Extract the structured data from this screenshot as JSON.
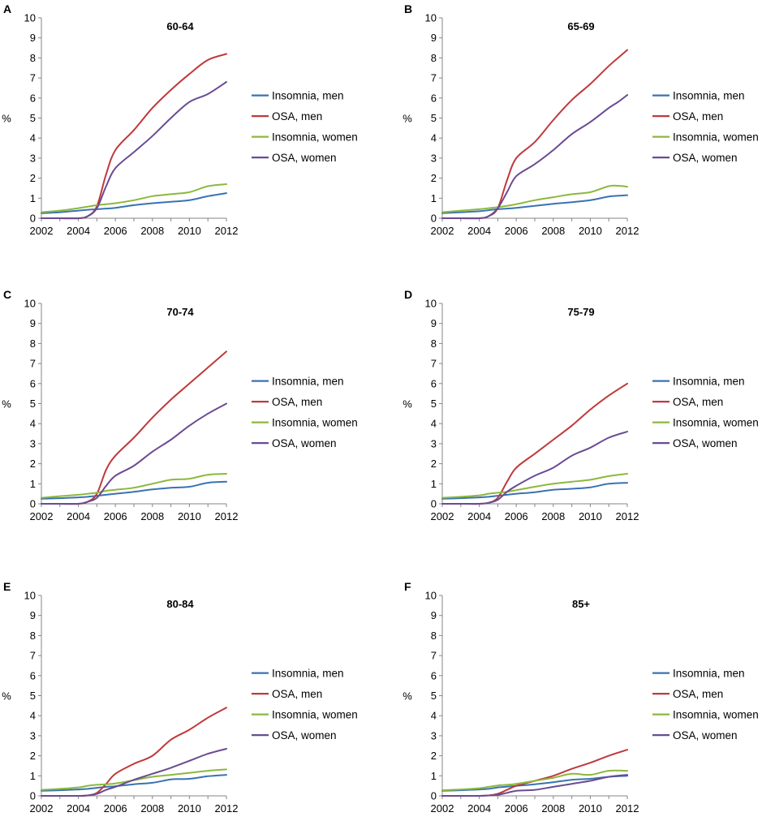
{
  "figure": {
    "series_colors": [
      "#3a72b2",
      "#c0393b",
      "#8cb83c",
      "#6a4b92"
    ]
  },
  "chart_data": [
    {
      "panel_letter": "A",
      "type": "line",
      "title": "60-64",
      "xlabel": "",
      "ylabel": "%",
      "xlim": [
        2002,
        2012
      ],
      "ylim": [
        0,
        10
      ],
      "x_ticks": [
        "2002",
        "2004",
        "2006",
        "2008",
        "2010",
        "2012"
      ],
      "y_ticks": [
        "0",
        "1",
        "2",
        "3",
        "4",
        "5",
        "6",
        "7",
        "8",
        "9",
        "10"
      ],
      "grid": false,
      "legend": "right",
      "x": [
        2002,
        2003,
        2004,
        2004.5,
        2005,
        2005.5,
        2006,
        2007,
        2008,
        2009,
        2010,
        2011,
        2012
      ],
      "series": [
        {
          "name": "Insomnia, men",
          "values": [
            0.25,
            0.3,
            0.38,
            0.42,
            0.45,
            0.48,
            0.52,
            0.65,
            0.75,
            0.82,
            0.9,
            1.1,
            1.25
          ]
        },
        {
          "name": "OSA, men",
          "values": [
            0,
            0,
            0,
            0.1,
            0.6,
            2.2,
            3.4,
            4.4,
            5.5,
            6.4,
            7.2,
            7.9,
            8.2
          ]
        },
        {
          "name": "Insomnia, women",
          "values": [
            0.3,
            0.38,
            0.5,
            0.58,
            0.65,
            0.7,
            0.75,
            0.9,
            1.1,
            1.2,
            1.3,
            1.6,
            1.7
          ]
        },
        {
          "name": "OSA, women",
          "values": [
            0,
            0,
            0,
            0.1,
            0.5,
            1.6,
            2.5,
            3.3,
            4.1,
            5,
            5.8,
            6.2,
            6.8
          ]
        }
      ]
    },
    {
      "panel_letter": "B",
      "type": "line",
      "title": "65-69",
      "xlabel": "",
      "ylabel": "%",
      "xlim": [
        2002,
        2012
      ],
      "ylim": [
        0,
        10
      ],
      "x_ticks": [
        "2002",
        "2004",
        "2006",
        "2008",
        "2010",
        "2012"
      ],
      "y_ticks": [
        "0",
        "1",
        "2",
        "3",
        "4",
        "5",
        "6",
        "7",
        "8",
        "9",
        "10"
      ],
      "grid": false,
      "legend": "right",
      "x": [
        2002,
        2003,
        2004,
        2004.5,
        2005,
        2005.5,
        2006,
        2007,
        2008,
        2009,
        2010,
        2011,
        2011.5,
        2012
      ],
      "series": [
        {
          "name": "Insomnia, men",
          "values": [
            0.25,
            0.3,
            0.35,
            0.4,
            0.45,
            0.48,
            0.52,
            0.62,
            0.72,
            0.8,
            0.9,
            1.08,
            1.12,
            1.15
          ]
        },
        {
          "name": "OSA, men",
          "values": [
            0,
            0,
            0,
            0.1,
            0.5,
            1.9,
            3.0,
            3.8,
            4.9,
            5.9,
            6.7,
            7.6,
            8.0,
            8.4
          ]
        },
        {
          "name": "Insomnia, women",
          "values": [
            0.3,
            0.38,
            0.45,
            0.5,
            0.55,
            0.62,
            0.7,
            0.9,
            1.05,
            1.2,
            1.3,
            1.6,
            1.62,
            1.57
          ]
        },
        {
          "name": "OSA, women",
          "values": [
            0,
            0,
            0,
            0.1,
            0.5,
            1.3,
            2.1,
            2.7,
            3.4,
            4.2,
            4.8,
            5.5,
            5.8,
            6.15
          ]
        }
      ]
    },
    {
      "panel_letter": "C",
      "type": "line",
      "title": "70-74",
      "xlabel": "",
      "ylabel": "%",
      "xlim": [
        2002,
        2012
      ],
      "ylim": [
        0,
        10
      ],
      "x_ticks": [
        "2002",
        "2004",
        "2006",
        "2008",
        "2010",
        "2012"
      ],
      "y_ticks": [
        "0",
        "1",
        "2",
        "3",
        "4",
        "5",
        "6",
        "7",
        "8",
        "9",
        "10"
      ],
      "grid": false,
      "legend": "right",
      "x": [
        2002,
        2003,
        2004,
        2004.5,
        2005,
        2005.5,
        2006,
        2007,
        2008,
        2009,
        2010,
        2011,
        2012
      ],
      "series": [
        {
          "name": "Insomnia, men",
          "values": [
            0.25,
            0.28,
            0.32,
            0.35,
            0.4,
            0.45,
            0.5,
            0.6,
            0.72,
            0.8,
            0.85,
            1.05,
            1.1
          ]
        },
        {
          "name": "OSA, men",
          "values": [
            0,
            0,
            0,
            0.1,
            0.5,
            1.7,
            2.4,
            3.3,
            4.3,
            5.2,
            6,
            6.8,
            7.6
          ]
        },
        {
          "name": "Insomnia, women",
          "values": [
            0.3,
            0.38,
            0.45,
            0.5,
            0.55,
            0.65,
            0.7,
            0.8,
            1.0,
            1.2,
            1.25,
            1.45,
            1.5
          ]
        },
        {
          "name": "OSA, women",
          "values": [
            0,
            0,
            0,
            0.1,
            0.3,
            0.9,
            1.4,
            1.9,
            2.6,
            3.2,
            3.9,
            4.5,
            5.0
          ]
        }
      ]
    },
    {
      "panel_letter": "D",
      "type": "line",
      "title": "75-79",
      "xlabel": "",
      "ylabel": "%",
      "xlim": [
        2002,
        2012
      ],
      "ylim": [
        0,
        10
      ],
      "x_ticks": [
        "2002",
        "2004",
        "2006",
        "2008",
        "2010",
        "2012"
      ],
      "y_ticks": [
        "0",
        "1",
        "2",
        "3",
        "4",
        "5",
        "6",
        "7",
        "8",
        "9",
        "10"
      ],
      "grid": false,
      "legend": "right",
      "x": [
        2002,
        2003,
        2004,
        2004.5,
        2005,
        2005.5,
        2006,
        2007,
        2008,
        2009,
        2010,
        2011,
        2012
      ],
      "series": [
        {
          "name": "Insomnia, men",
          "values": [
            0.25,
            0.28,
            0.32,
            0.35,
            0.4,
            0.45,
            0.5,
            0.58,
            0.7,
            0.75,
            0.82,
            1.0,
            1.05
          ]
        },
        {
          "name": "OSA, men",
          "values": [
            0,
            0,
            0,
            0.05,
            0.3,
            1.1,
            1.8,
            2.5,
            3.2,
            3.9,
            4.7,
            5.4,
            6.0
          ]
        },
        {
          "name": "Insomnia, women",
          "values": [
            0.3,
            0.35,
            0.42,
            0.5,
            0.55,
            0.6,
            0.68,
            0.85,
            1.0,
            1.1,
            1.2,
            1.38,
            1.5
          ]
        },
        {
          "name": "OSA, women",
          "values": [
            0,
            0,
            0,
            0.05,
            0.2,
            0.6,
            0.9,
            1.4,
            1.8,
            2.4,
            2.8,
            3.3,
            3.6
          ]
        }
      ]
    },
    {
      "panel_letter": "E",
      "type": "line",
      "title": "80-84",
      "xlabel": "",
      "ylabel": "%",
      "xlim": [
        2002,
        2012
      ],
      "ylim": [
        0,
        10
      ],
      "x_ticks": [
        "2002",
        "2004",
        "2006",
        "2008",
        "2010",
        "2012"
      ],
      "y_ticks": [
        "0",
        "1",
        "2",
        "3",
        "4",
        "5",
        "6",
        "7",
        "8",
        "9",
        "10"
      ],
      "grid": false,
      "legend": "right",
      "x": [
        2002,
        2003,
        2004,
        2004.5,
        2005,
        2005.5,
        2006,
        2007,
        2008,
        2009,
        2010,
        2011,
        2012
      ],
      "series": [
        {
          "name": "Insomnia, men",
          "values": [
            0.25,
            0.28,
            0.32,
            0.35,
            0.4,
            0.45,
            0.48,
            0.58,
            0.65,
            0.82,
            0.85,
            0.98,
            1.05
          ]
        },
        {
          "name": "OSA, men",
          "values": [
            0,
            0,
            0,
            0.02,
            0.15,
            0.6,
            1.1,
            1.6,
            2.0,
            2.8,
            3.3,
            3.9,
            4.4
          ]
        },
        {
          "name": "Insomnia, women",
          "values": [
            0.3,
            0.35,
            0.42,
            0.5,
            0.55,
            0.58,
            0.62,
            0.78,
            0.95,
            1.05,
            1.15,
            1.25,
            1.32
          ]
        },
        {
          "name": "OSA, women",
          "values": [
            0,
            0,
            0,
            0.02,
            0.1,
            0.3,
            0.45,
            0.8,
            1.1,
            1.4,
            1.75,
            2.1,
            2.35
          ]
        }
      ]
    },
    {
      "panel_letter": "F",
      "type": "line",
      "title": "85+",
      "xlabel": "",
      "ylabel": "%",
      "xlim": [
        2002,
        2012
      ],
      "ylim": [
        0,
        10
      ],
      "x_ticks": [
        "2002",
        "2004",
        "2006",
        "2008",
        "2010",
        "2012"
      ],
      "y_ticks": [
        "0",
        "1",
        "2",
        "3",
        "4",
        "5",
        "6",
        "7",
        "8",
        "9",
        "10"
      ],
      "grid": false,
      "legend": "right",
      "x": [
        2002,
        2003,
        2004,
        2004.5,
        2005,
        2005.5,
        2006,
        2007,
        2008,
        2009,
        2010,
        2011,
        2012
      ],
      "series": [
        {
          "name": "Insomnia, men",
          "values": [
            0.25,
            0.28,
            0.32,
            0.35,
            0.42,
            0.46,
            0.5,
            0.58,
            0.68,
            0.8,
            0.85,
            0.95,
            1.0
          ]
        },
        {
          "name": "OSA, men",
          "values": [
            0,
            0,
            0,
            0.02,
            0.1,
            0.3,
            0.5,
            0.75,
            1.0,
            1.35,
            1.65,
            2.0,
            2.3
          ]
        },
        {
          "name": "Insomnia, women",
          "values": [
            0.28,
            0.32,
            0.38,
            0.45,
            0.52,
            0.55,
            0.6,
            0.75,
            0.9,
            1.1,
            1.05,
            1.25,
            1.25
          ]
        },
        {
          "name": "OSA, women",
          "values": [
            0,
            0,
            0,
            0.02,
            0.05,
            0.15,
            0.25,
            0.3,
            0.45,
            0.6,
            0.75,
            0.95,
            1.05
          ]
        }
      ]
    }
  ]
}
